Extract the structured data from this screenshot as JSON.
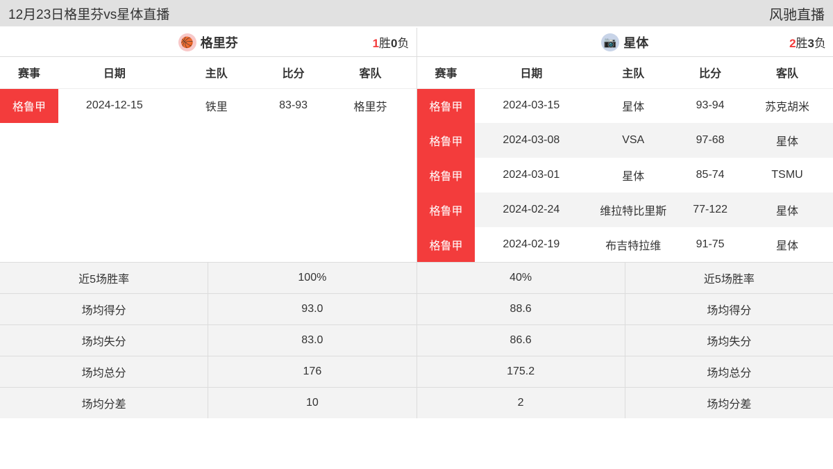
{
  "header": {
    "title": "12月23日格里芬vs星体直播",
    "brand": "风驰直播"
  },
  "teams": {
    "left": {
      "name": "格里芬",
      "icon_bg": "#f8c8c8",
      "icon_glyph": "🏀",
      "wins": "1",
      "losses": "0",
      "wins_label": "胜",
      "losses_label": "负"
    },
    "right": {
      "name": "星体",
      "icon_bg": "#c8d4e8",
      "icon_glyph": "📷",
      "wins": "2",
      "losses": "3",
      "wins_label": "胜",
      "losses_label": "负"
    }
  },
  "columns": {
    "league": "赛事",
    "date": "日期",
    "home": "主队",
    "score": "比分",
    "away": "客队"
  },
  "left_rows": [
    {
      "league": "格鲁甲",
      "date": "2024-12-15",
      "home": "铁里",
      "score": "83-93",
      "away": "格里芬"
    }
  ],
  "right_rows": [
    {
      "league": "格鲁甲",
      "date": "2024-03-15",
      "home": "星体",
      "score": "93-94",
      "away": "苏克胡米"
    },
    {
      "league": "格鲁甲",
      "date": "2024-03-08",
      "home": "VSA",
      "score": "97-68",
      "away": "星体"
    },
    {
      "league": "格鲁甲",
      "date": "2024-03-01",
      "home": "星体",
      "score": "85-74",
      "away": "TSMU"
    },
    {
      "league": "格鲁甲",
      "date": "2024-02-24",
      "home": "维拉特比里斯",
      "score": "77-122",
      "away": "星体"
    },
    {
      "league": "格鲁甲",
      "date": "2024-02-19",
      "home": "布吉特拉维",
      "score": "91-75",
      "away": "星体"
    }
  ],
  "stats": [
    {
      "label_left": "近5场胜率",
      "val_left": "100%",
      "val_right": "40%",
      "label_right": "近5场胜率"
    },
    {
      "label_left": "场均得分",
      "val_left": "93.0",
      "val_right": "88.6",
      "label_right": "场均得分"
    },
    {
      "label_left": "场均失分",
      "val_left": "83.0",
      "val_right": "86.6",
      "label_right": "场均失分"
    },
    {
      "label_left": "场均总分",
      "val_left": "176",
      "val_right": "175.2",
      "label_right": "场均总分"
    },
    {
      "label_left": "场均分差",
      "val_left": "10",
      "val_right": "2",
      "label_right": "场均分差"
    }
  ],
  "colors": {
    "accent_red": "#f33c3c",
    "header_bg": "#e1e1e1",
    "row_alt_bg": "#f3f3f3",
    "border": "#dcdcdc"
  }
}
